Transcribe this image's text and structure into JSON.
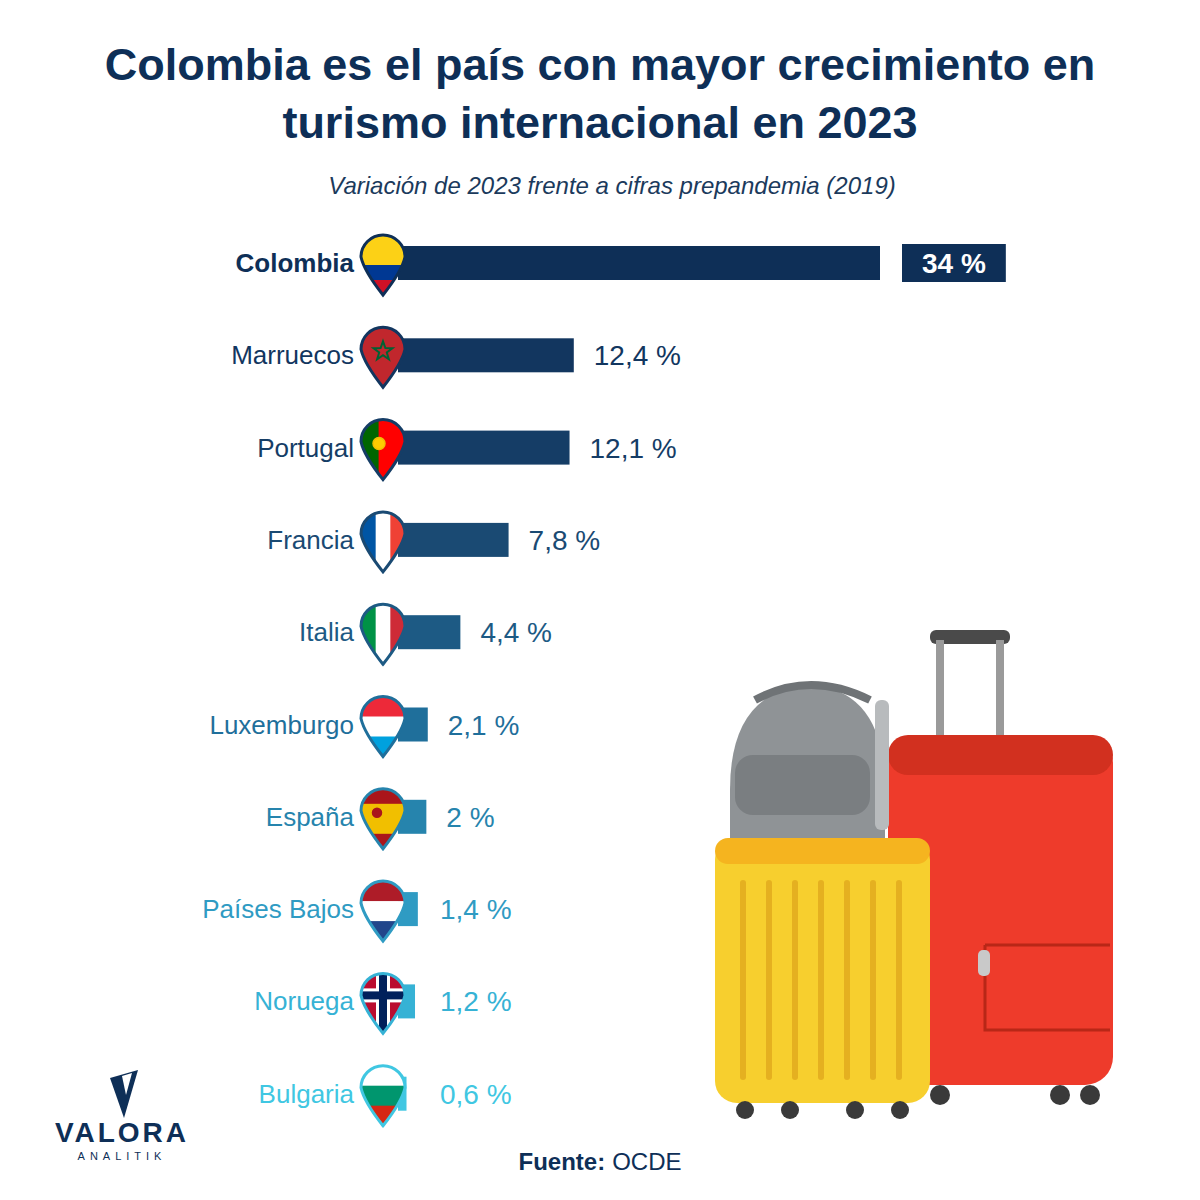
{
  "chart_data": {
    "type": "bar",
    "orientation": "horizontal",
    "title": "Colombia es el país con mayor crecimiento en turismo internacional en 2023",
    "subtitle": "Variación de 2023 frente a cifras prepandemia (2019)",
    "categories": [
      "Colombia",
      "Marruecos",
      "Portugal",
      "Francia",
      "Italia",
      "Luxemburgo",
      "España",
      "Países Bajos",
      "Noruega",
      "Bulgaria"
    ],
    "values": [
      34,
      12.4,
      12.1,
      7.8,
      4.4,
      2.1,
      2,
      1.4,
      1.2,
      0.6
    ],
    "value_labels": [
      "34 %",
      "12,4 %",
      "12,1 %",
      "7,8 %",
      "4,4 %",
      "2,1 %",
      "2 %",
      "1,4 %",
      "1,2 %",
      "0,6 %"
    ],
    "colors": [
      "#0e2f57",
      "#12365f",
      "#153d66",
      "#1a4a73",
      "#1d5a84",
      "#1f6f9b",
      "#2684ad",
      "#2f9bc3",
      "#36b2d5",
      "#40c7e2"
    ],
    "xlim": [
      0,
      34
    ],
    "tick_labels": false,
    "grid": false,
    "data_labels": true,
    "source_label": "Fuente:",
    "source": "OCDE"
  },
  "logo": {
    "name": "VALORA",
    "tagline": "ANALITIK"
  }
}
